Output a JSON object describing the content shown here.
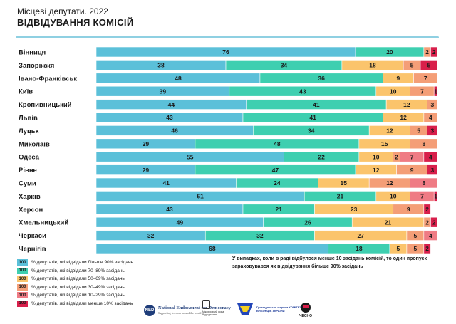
{
  "header": {
    "subtitle": "Місцеві депутати. 2022",
    "title": "ВІДВІДУВАННЯ КОМІСІЙ"
  },
  "colors": {
    "ge90": "#5bc0d9",
    "r70_89": "#3ecfb0",
    "r50_69": "#fbc46c",
    "r30_49": "#f49e77",
    "r10_29": "#ef7b84",
    "lt10": "#d81f4b"
  },
  "chart_data": {
    "type": "bar",
    "orientation": "horizontal",
    "stacked": true,
    "xlim": [
      0,
      100
    ],
    "categories": [
      "Вінниця",
      "Запоріжжя",
      "Івано-Франківськ",
      "Київ",
      "Кропивницький",
      "Львів",
      "Луцьк",
      "Миколаїв",
      "Одеса",
      "Рівне",
      "Суми",
      "Харків",
      "Херсон",
      "Хмельницький",
      "Черкаси",
      "Чернігів"
    ],
    "series": [
      {
        "name": "% депутатів, які відвідали більше 90% засідань",
        "key": "ge90",
        "values": [
          76,
          38,
          48,
          39,
          44,
          43,
          46,
          29,
          55,
          29,
          41,
          61,
          43,
          49,
          32,
          68
        ]
      },
      {
        "name": "% депутатів, які відвідали 70–89% засідань",
        "key": "r70_89",
        "values": [
          20,
          34,
          36,
          43,
          41,
          41,
          34,
          48,
          22,
          47,
          24,
          21,
          21,
          26,
          32,
          18
        ]
      },
      {
        "name": "% депутатів, які відвідали 50–69% засідань",
        "key": "r50_69",
        "values": [
          0,
          18,
          9,
          10,
          12,
          12,
          12,
          15,
          10,
          12,
          15,
          10,
          23,
          21,
          27,
          5
        ]
      },
      {
        "name": "% депутатів, які відвідали 30–49% засідань",
        "key": "r30_49",
        "values": [
          2,
          5,
          7,
          7,
          3,
          4,
          5,
          8,
          2,
          9,
          12,
          0,
          9,
          2,
          5,
          5
        ]
      },
      {
        "name": "% депутатів, які відвідали 10–29% засідань",
        "key": "r10_29",
        "values": [
          0,
          0,
          0,
          0,
          0,
          0,
          0,
          0,
          7,
          0,
          8,
          7,
          0,
          0,
          4,
          0
        ]
      },
      {
        "name": "% депутатів, які відвідали менше 10% засідань",
        "key": "lt10",
        "values": [
          2,
          5,
          0,
          1,
          0,
          0,
          3,
          0,
          4,
          3,
          0,
          1,
          2,
          2,
          0,
          2
        ]
      }
    ],
    "legend_position": "bottom-left",
    "grid": false
  },
  "legend": {
    "swatch_text": "100"
  },
  "note": "У випадках, коли в раді відбулося менше 10 засідань комісій, то один пропуск зараховувався як відвідування більше 90% засідань",
  "logos": {
    "ned_mark": "NED",
    "ned_name": "National Endowment for Democracy",
    "ned_tagline": "Supporting freedom around the world",
    "fund_text": "Міжнародний фонд Відродження",
    "voters_text": "Громадянська мережа КОМІТЕТ ВИБОРЦІВ УКРАЇНИ",
    "chesno_text": "ЧЕСНО"
  }
}
